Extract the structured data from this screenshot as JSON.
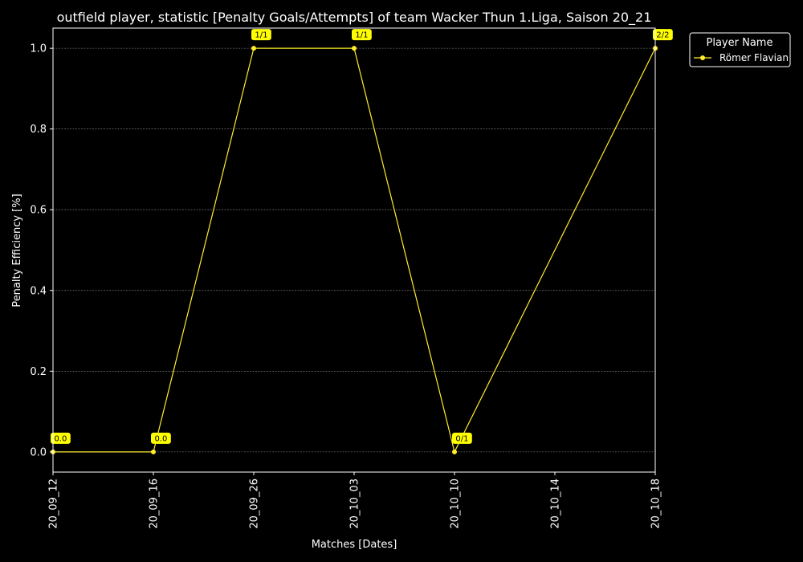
{
  "colors": {
    "background": "#000000",
    "foreground": "#ffffff",
    "series": "#ffed29",
    "annotation_bg": "#ffff00",
    "grid": "#8a8a8a"
  },
  "chart_data": {
    "type": "line",
    "title": "outfield player, statistic [Penalty Goals/Attempts] of team Wacker Thun 1.Liga, Saison 20_21",
    "xlabel": "Matches [Dates]",
    "ylabel": "Penalty Efficiency [%]",
    "categories": [
      "20_09_12",
      "20_09_16",
      "20_09_26",
      "20_10_03",
      "20_10_10",
      "20_10_14",
      "20_10_18"
    ],
    "ylim": [
      -0.05,
      1.05
    ],
    "yticks": [
      0.0,
      0.2,
      0.4,
      0.6,
      0.8,
      1.0
    ],
    "ytick_labels": [
      "0.0",
      "0.2",
      "0.4",
      "0.6",
      "0.8",
      "1.0"
    ],
    "grid": "horizontal dashed",
    "legend": {
      "title": "Player Name",
      "position": "outside-right-top"
    },
    "series": [
      {
        "name": "Römer Flavian",
        "points": [
          {
            "x": "20_09_12",
            "y": 0.0,
            "label": "0.0"
          },
          {
            "x": "20_09_16",
            "y": 0.0,
            "label": "0.0"
          },
          {
            "x": "20_09_26",
            "y": 1.0,
            "label": "1/1"
          },
          {
            "x": "20_10_03",
            "y": 1.0,
            "label": "1/1"
          },
          {
            "x": "20_10_10",
            "y": 0.0,
            "label": "0/1"
          },
          {
            "x": "20_10_18",
            "y": 1.0,
            "label": "2/2"
          }
        ]
      }
    ]
  }
}
